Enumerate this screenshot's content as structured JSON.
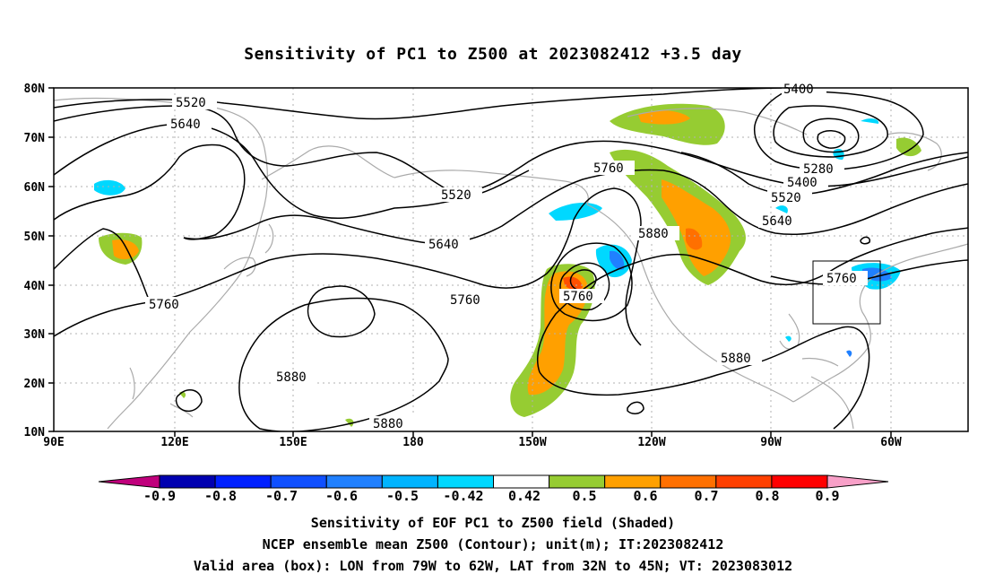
{
  "title": "Sensitivity of PC1 to Z500 at 2023082412 +3.5 day",
  "lat_labels": [
    "80N",
    "70N",
    "60N",
    "50N",
    "40N",
    "30N",
    "20N",
    "10N"
  ],
  "lon_labels": [
    "90E",
    "120E",
    "150E",
    "180",
    "150W",
    "120W",
    "90W",
    "60W"
  ],
  "contour_labels": {
    "c5520a": "5520",
    "c5640a": "5640",
    "c5400": "5400",
    "c5760a": "5760",
    "c5760b": "5760",
    "c5280": "5280",
    "c5400b": "5400",
    "c5520b": "5520",
    "c5520c": "5520",
    "c5640b": "5640",
    "c5640c": "5640",
    "c5760c": "5760",
    "c5880a": "5880",
    "c5760d": "5760",
    "c5760e": "5760",
    "c5880b": "5880",
    "c5880c": "5880",
    "c5880d": "5880"
  },
  "colorbar": {
    "labels": [
      "-0.9",
      "-0.8",
      "-0.7",
      "-0.6",
      "-0.5",
      "-0.42",
      "0.42",
      "0.5",
      "0.6",
      "0.7",
      "0.8",
      "0.9"
    ],
    "colors": [
      "#0000b0",
      "#0020ff",
      "#1050ff",
      "#2080ff",
      "#00b4ff",
      "#00d8ff",
      "#ffffff",
      "#96cc32",
      "#ffa000",
      "#ff7000",
      "#ff4000",
      "#ff0000"
    ],
    "left_arrow": "#c0007c",
    "right_arrow": "#f8a0c8"
  },
  "captions": [
    "Sensitivity of EOF PC1 to Z500 field (Shaded)",
    "NCEP ensemble mean Z500 (Contour); unit(m); IT:2023082412",
    "Valid area (box): LON from 79W to 62W, LAT from 32N to 45N; VT: 2023083012"
  ]
}
